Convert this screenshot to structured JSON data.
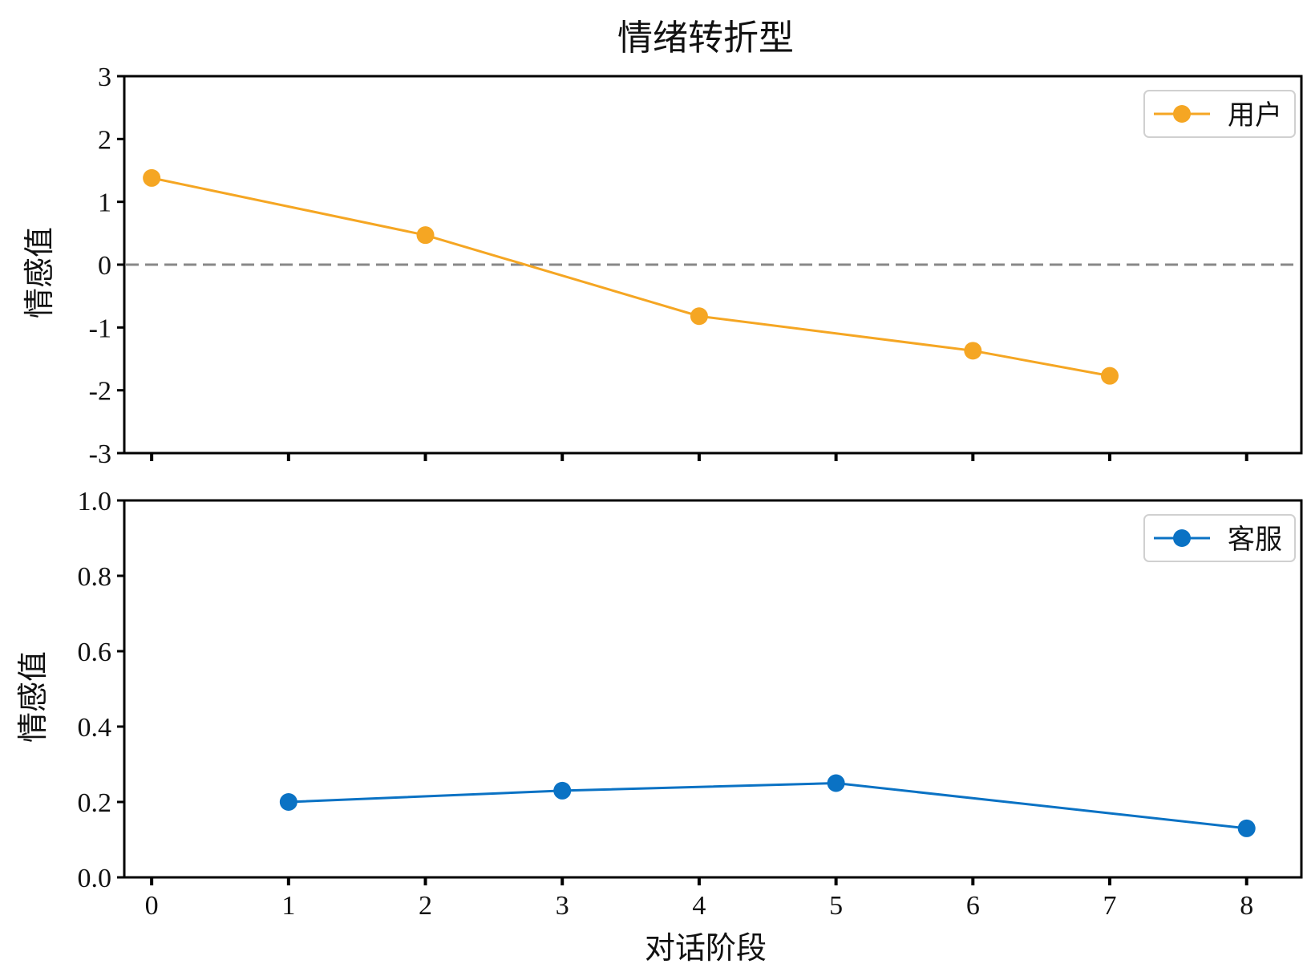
{
  "chart_data": {
    "type": "line",
    "title": "情绪转折型",
    "xlabel": "对话阶段",
    "x_ticks": [
      0,
      1,
      2,
      3,
      4,
      5,
      6,
      7,
      8
    ],
    "xlim": [
      -0.2,
      8.4
    ],
    "panels": [
      {
        "ylabel": "情感值",
        "ylim": [
          -3,
          3
        ],
        "y_ticks": [
          3,
          2,
          1,
          0,
          -1,
          -2,
          -3
        ],
        "y_tick_labels": [
          "3",
          "2",
          "1",
          "0",
          "-1",
          "-2",
          "-3"
        ],
        "zero_reference_line": true,
        "legend_position": "top-right",
        "series": [
          {
            "name": "用户",
            "color": "#F5A623",
            "x": [
              0,
              2,
              4,
              6,
              7
            ],
            "y": [
              1.38,
              0.47,
              -0.82,
              -1.37,
              -1.77
            ]
          }
        ]
      },
      {
        "ylabel": "情感值",
        "ylim": [
          0,
          1
        ],
        "y_ticks": [
          1.0,
          0.8,
          0.6,
          0.4,
          0.2,
          0.0
        ],
        "y_tick_labels": [
          "1.0",
          "0.8",
          "0.6",
          "0.4",
          "0.2",
          "0.0"
        ],
        "zero_reference_line": false,
        "legend_position": "top-right",
        "series": [
          {
            "name": "客服",
            "color": "#0A72C4",
            "x": [
              1,
              3,
              5,
              8
            ],
            "y": [
              0.2,
              0.23,
              0.25,
              0.13
            ]
          }
        ]
      }
    ]
  }
}
